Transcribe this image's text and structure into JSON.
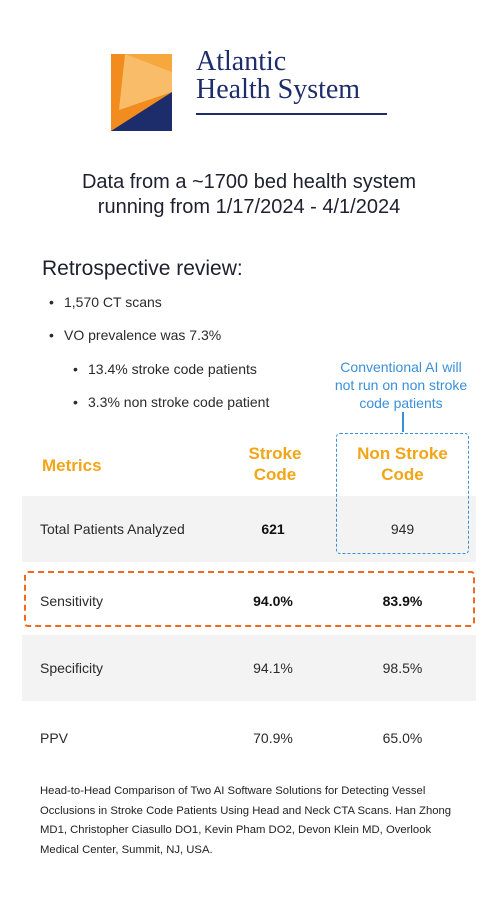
{
  "logo": {
    "line1": "Atlantic",
    "line2": "Health System"
  },
  "headline": {
    "line1": "Data from a ~1700 bed health system",
    "line2": "running from 1/17/2024 - 4/1/2024"
  },
  "review": {
    "title": "Retrospective review:",
    "bullets": [
      "1,570 CT scans",
      "VO prevalence was 7.3%",
      "13.4% stroke code patients",
      "3.3% non stroke code patient"
    ]
  },
  "note": {
    "line1": "Conventional AI will",
    "line2": "not run on non stroke",
    "line3": "code patients"
  },
  "table": {
    "headers": {
      "metrics": "Metrics",
      "stroke_line1": "Stroke",
      "stroke_line2": "Code",
      "nonstroke_line1": "Non Stroke",
      "nonstroke_line2": "Code"
    },
    "rows": [
      {
        "label": "Total Patients Analyzed",
        "stroke": "621",
        "nonstroke": "949"
      },
      {
        "label": "Sensitivity",
        "stroke": "94.0%",
        "nonstroke": "83.9%"
      },
      {
        "label": "Specificity",
        "stroke": "94.1%",
        "nonstroke": "98.5%"
      },
      {
        "label": "PPV",
        "stroke": "70.9%",
        "nonstroke": "65.0%"
      }
    ]
  },
  "footnote": "Head-to-Head Comparison of Two AI Software Solutions for Detecting Vessel Occlusions in Stroke Code Patients Using Head and Neck CTA Scans. Han Zhong MD1, Christopher Ciasullo DO1, Kevin Pham DO2, Devon Klein MD, Overlook Medical Center, Summit, NJ, USA.",
  "colors": {
    "brand_navy": "#1d2d6b",
    "brand_orange": "#f28c1e",
    "header_orange": "#f2a516",
    "highlight_orange": "#f06a1e",
    "note_blue": "#3a8fd9"
  }
}
